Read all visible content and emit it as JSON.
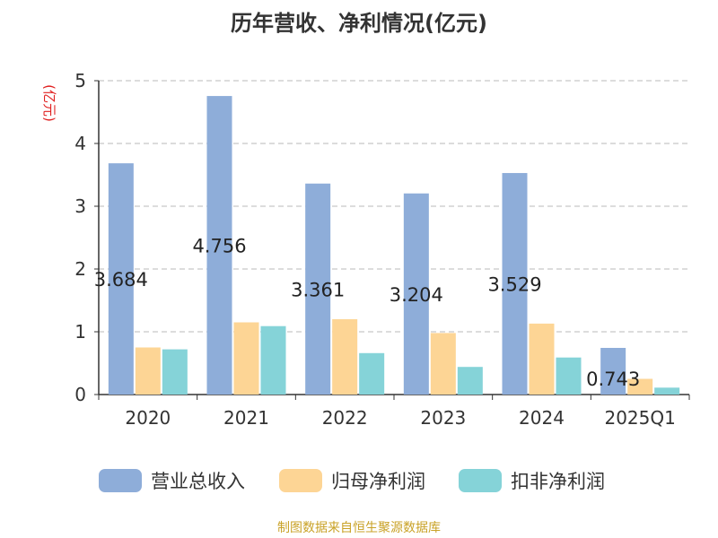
{
  "chart_data": {
    "type": "bar",
    "title": "历年营收、净利情况(亿元)",
    "ylabel": "(亿元)",
    "xlabel": "",
    "ylim": [
      0,
      5
    ],
    "yticks": [
      "0",
      "1",
      "2",
      "3",
      "4",
      "5"
    ],
    "grid": true,
    "legend_position": "bottom",
    "categories": [
      "2020",
      "2021",
      "2022",
      "2023",
      "2024",
      "2025Q1"
    ],
    "series": [
      {
        "name": "营业总收入",
        "color": "#8eadd9",
        "values": [
          3.684,
          4.756,
          3.361,
          3.204,
          3.529,
          0.743
        ],
        "labels": [
          "3.684",
          "4.756",
          "3.361",
          "3.204",
          "3.529",
          "0.743"
        ]
      },
      {
        "name": "归母净利润",
        "color": "#fdd595",
        "values": [
          0.75,
          1.15,
          1.2,
          0.98,
          1.13,
          0.25
        ]
      },
      {
        "name": "扣非净利润",
        "color": "#85d3d8",
        "values": [
          0.72,
          1.09,
          0.66,
          0.44,
          0.59,
          0.11
        ]
      }
    ]
  },
  "source": "制图数据来自恒生聚源数据库"
}
